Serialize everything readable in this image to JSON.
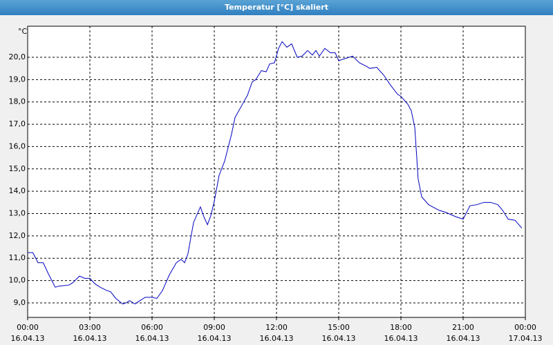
{
  "chart_data": {
    "type": "line",
    "title": "Temperatur [°C] skaliert",
    "y_label": "°C",
    "x": [
      0,
      0.25,
      0.5,
      0.75,
      1.0,
      1.33,
      1.5,
      2.0,
      2.17,
      2.5,
      2.75,
      3.0,
      3.25,
      3.5,
      3.83,
      4.0,
      4.25,
      4.58,
      4.75,
      4.92,
      5.17,
      5.33,
      5.67,
      6.0,
      6.23,
      6.5,
      6.83,
      7.17,
      7.4,
      7.57,
      7.73,
      8.0,
      8.33,
      8.5,
      8.67,
      8.83,
      9.0,
      9.23,
      9.5,
      9.83,
      10.0,
      10.33,
      10.6,
      10.83,
      11.0,
      11.27,
      11.5,
      11.67,
      11.9,
      12.1,
      12.27,
      12.5,
      12.73,
      13.0,
      13.23,
      13.5,
      13.73,
      13.9,
      14.07,
      14.33,
      14.6,
      14.83,
      15.0,
      15.33,
      15.67,
      16.0,
      16.33,
      16.5,
      16.83,
      17.17,
      17.5,
      17.83,
      18.0,
      18.33,
      18.5,
      18.67,
      18.83,
      19.0,
      19.33,
      19.83,
      20.17,
      20.67,
      21.0,
      21.33,
      21.67,
      22.0,
      22.33,
      22.67,
      22.9,
      23.17,
      23.5,
      23.83
    ],
    "series": [
      {
        "name": "Temperatur",
        "color": "#0000c0",
        "values": [
          11.25,
          11.25,
          10.8,
          10.8,
          10.3,
          9.7,
          9.75,
          9.8,
          9.9,
          10.2,
          10.1,
          10.1,
          9.85,
          9.7,
          9.55,
          9.5,
          9.2,
          8.95,
          9.0,
          9.1,
          8.95,
          9.05,
          9.25,
          9.25,
          9.2,
          9.55,
          10.25,
          10.8,
          10.95,
          10.8,
          11.2,
          12.6,
          13.3,
          12.85,
          12.5,
          12.9,
          13.55,
          14.7,
          15.35,
          16.55,
          17.3,
          17.85,
          18.3,
          18.9,
          19.0,
          19.4,
          19.35,
          19.7,
          19.75,
          20.4,
          20.7,
          20.45,
          20.6,
          20.0,
          20.05,
          20.3,
          20.1,
          20.3,
          20.05,
          20.4,
          20.2,
          20.2,
          19.85,
          19.95,
          20.05,
          19.75,
          19.6,
          19.5,
          19.55,
          19.2,
          18.75,
          18.35,
          18.25,
          17.9,
          17.6,
          16.85,
          14.55,
          13.75,
          13.4,
          13.15,
          13.05,
          12.85,
          12.75,
          13.35,
          13.4,
          13.5,
          13.5,
          13.4,
          13.15,
          12.75,
          12.7,
          12.35
        ]
      }
    ],
    "xlim": [
      0,
      24
    ],
    "ylim": [
      8.35,
      21.39
    ],
    "xticks": [
      {
        "value": 0,
        "label": "00:00"
      },
      {
        "value": 3,
        "label": "03:00"
      },
      {
        "value": 6,
        "label": "06:00"
      },
      {
        "value": 9,
        "label": "09:00"
      },
      {
        "value": 12,
        "label": "12:00"
      },
      {
        "value": 15,
        "label": "15:00"
      },
      {
        "value": 18,
        "label": "18:00"
      },
      {
        "value": 21,
        "label": "21:00"
      },
      {
        "value": 24,
        "label": "00:00"
      }
    ],
    "xtick_dates": [
      "16.04.13",
      "16.04.13",
      "16.04.13",
      "16.04.13",
      "16.04.13",
      "16.04.13",
      "16.04.13",
      "16.04.13",
      "17.04.13"
    ],
    "yticks": [
      {
        "value": 9,
        "label": "9,0"
      },
      {
        "value": 10,
        "label": "10,0"
      },
      {
        "value": 11,
        "label": "11,0"
      },
      {
        "value": 12,
        "label": "12,0"
      },
      {
        "value": 13,
        "label": "13,0"
      },
      {
        "value": 14,
        "label": "14,0"
      },
      {
        "value": 15,
        "label": "15,0"
      },
      {
        "value": 16,
        "label": "16,0"
      },
      {
        "value": 17,
        "label": "17,0"
      },
      {
        "value": 18,
        "label": "18,0"
      },
      {
        "value": 19,
        "label": "19,0"
      },
      {
        "value": 20,
        "label": "20,0"
      }
    ],
    "grid": true
  }
}
